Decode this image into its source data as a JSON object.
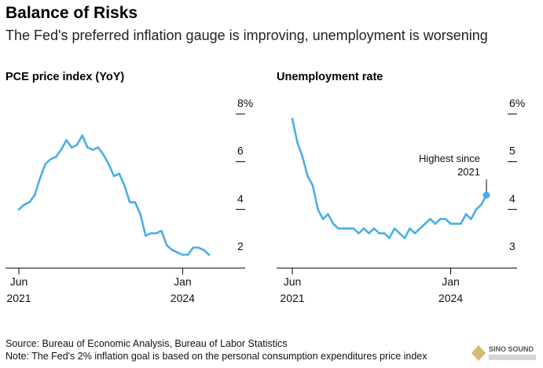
{
  "header": {
    "title": "Balance of Risks",
    "subtitle": "The Fed's preferred inflation gauge is improving, unemployment is worsening"
  },
  "footer": {
    "source": "Source: Bureau of Economic Analysis, Bureau of Labor Statistics",
    "note": "Note: The Fed's 2% inflation goal is based on the personal consumption expenditures price index"
  },
  "watermark": {
    "label": "SINO SOUND"
  },
  "colors": {
    "line": "#4aaee6",
    "axis": "#000000"
  },
  "chart_data": [
    {
      "type": "line",
      "title": "PCE price index (YoY)",
      "xlabel": "",
      "ylabel": "",
      "x_start": "2021-06",
      "x_tick_labels": [
        [
          "Jun",
          "2021"
        ],
        [
          "Jan",
          "2024"
        ]
      ],
      "x_tick_index": [
        0,
        31
      ],
      "y_ticks": [
        "8%",
        "6",
        "4",
        "2"
      ],
      "y_tick_values": [
        8,
        6,
        4,
        2
      ],
      "ylim": [
        1.4,
        8
      ],
      "n_points": 37,
      "values": [
        4.0,
        4.2,
        4.3,
        4.6,
        5.3,
        5.9,
        6.1,
        6.2,
        6.5,
        6.9,
        6.6,
        6.7,
        7.1,
        6.6,
        6.5,
        6.6,
        6.3,
        5.9,
        5.4,
        5.5,
        5.0,
        4.3,
        4.3,
        3.8,
        2.9,
        3.0,
        3.0,
        3.1,
        2.5,
        2.3,
        2.2,
        2.1,
        2.1,
        2.4,
        2.4,
        2.3,
        2.1
      ],
      "annotations": []
    },
    {
      "type": "line",
      "title": "Unemployment rate",
      "xlabel": "",
      "ylabel": "",
      "x_start": "2021-06",
      "x_tick_labels": [
        [
          "Jun",
          "2021"
        ],
        [
          "Jan",
          "2024"
        ]
      ],
      "x_tick_index": [
        0,
        31
      ],
      "y_ticks": [
        "6%",
        "5",
        "4",
        "3"
      ],
      "y_tick_values": [
        6,
        5,
        4,
        3
      ],
      "ylim": [
        2.7,
        6
      ],
      "n_points": 39,
      "values": [
        5.9,
        5.4,
        5.1,
        4.7,
        4.5,
        4.0,
        3.8,
        3.9,
        3.7,
        3.6,
        3.6,
        3.6,
        3.6,
        3.5,
        3.6,
        3.5,
        3.6,
        3.5,
        3.5,
        3.4,
        3.6,
        3.5,
        3.4,
        3.6,
        3.5,
        3.6,
        3.7,
        3.8,
        3.7,
        3.8,
        3.8,
        3.7,
        3.7,
        3.7,
        3.9,
        3.8,
        4.0,
        4.1,
        4.3
      ],
      "annotations": [
        {
          "label_line1": "Highest since",
          "label_line2": "2021",
          "index": 38,
          "value": 4.3
        }
      ]
    }
  ]
}
